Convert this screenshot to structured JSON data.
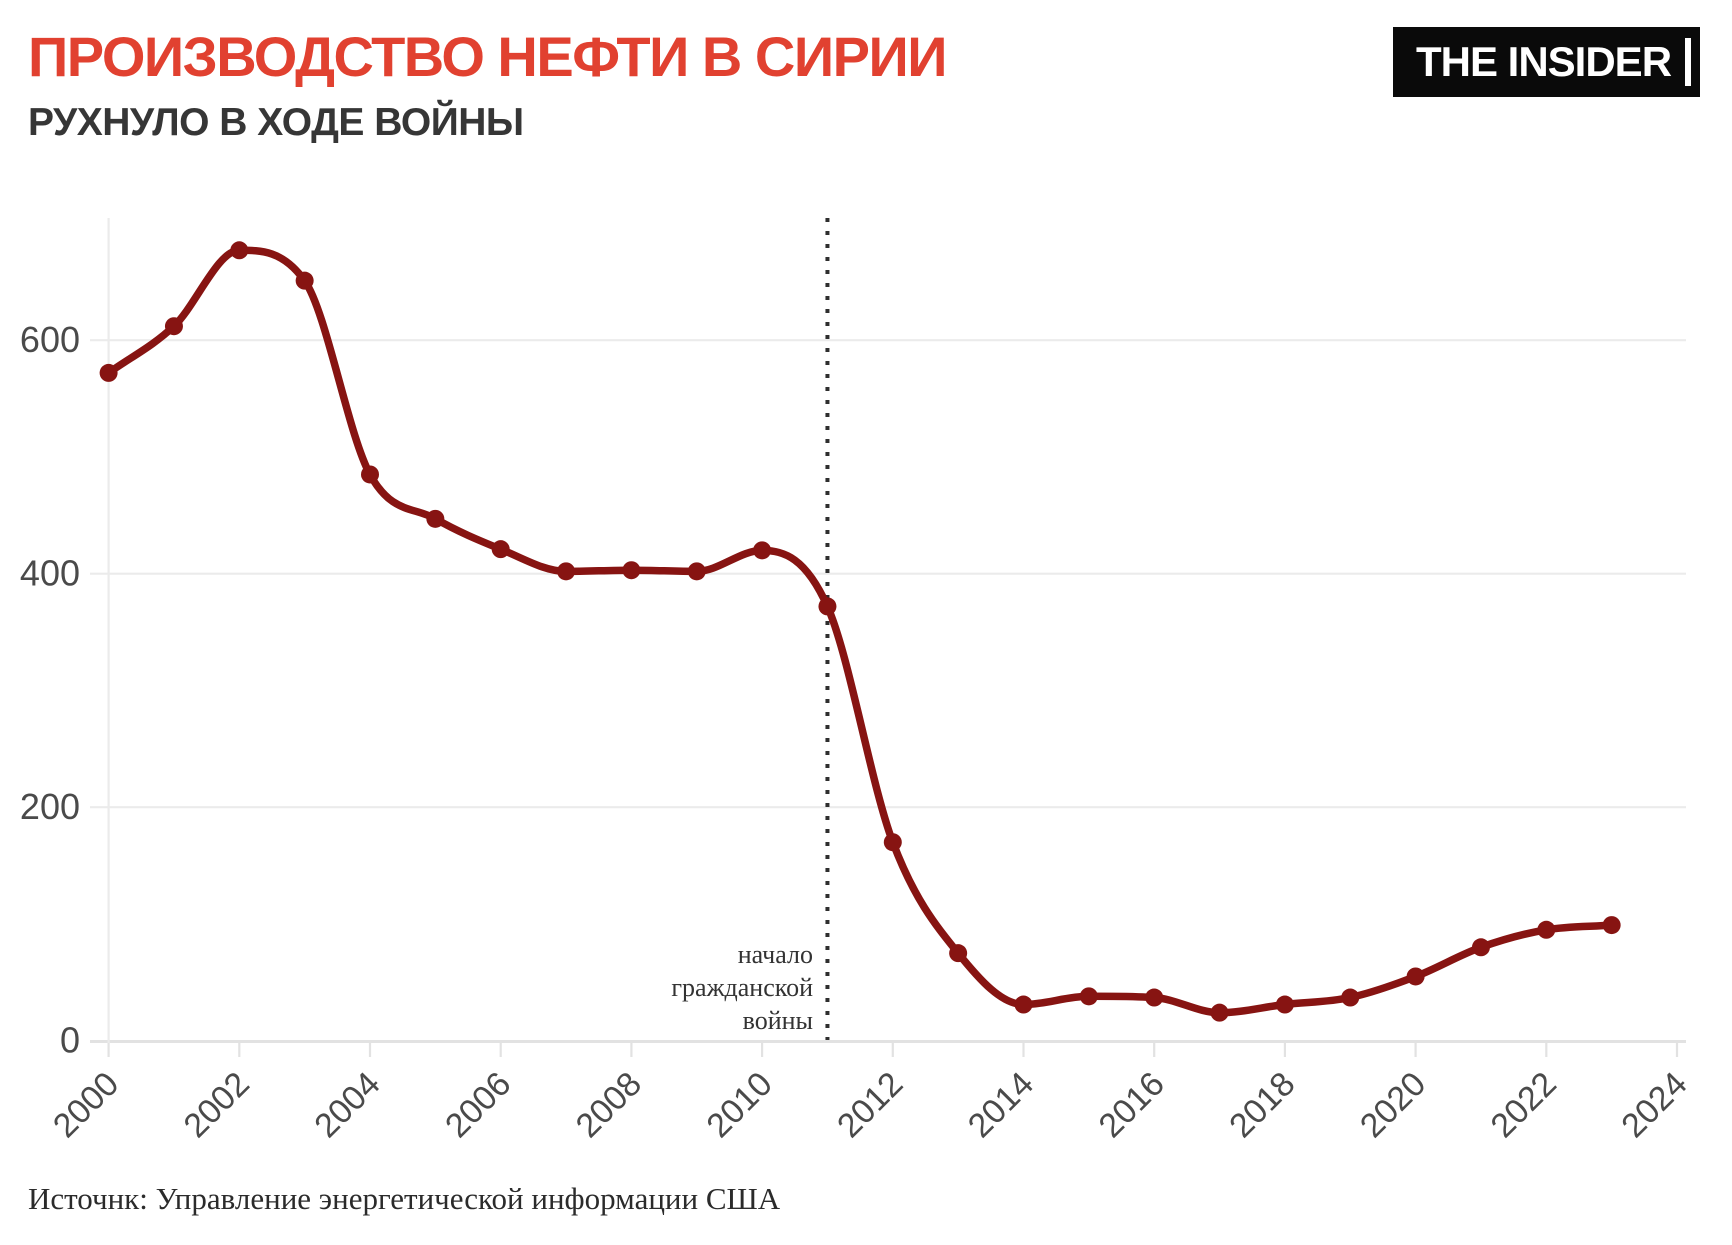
{
  "page": {
    "title": "ПРОИЗВОДСТВО НЕФТИ В СИРИИ",
    "subtitle": "РУХНУЛО В ХОДЕ ВОЙНЫ",
    "logo_text": "THE INSIDER",
    "source": "Источнк: Управление энергетической информации США"
  },
  "colors": {
    "title": "#e14130",
    "subtitle": "#363636",
    "line": "#871412",
    "grid": "#ebebeb",
    "axis": "#e2e2e2",
    "tick_label": "#4a4a4a",
    "divider": "#2e2e2e",
    "logo_bg": "#0a0a0a",
    "logo_fg": "#ffffff"
  },
  "chart_data": {
    "type": "line",
    "title": "ПРОИЗВОДСТВО НЕФТИ В СИРИИ",
    "subtitle": "РУХНУЛО В ХОДЕ ВОЙНЫ",
    "x": [
      2000,
      2001,
      2002,
      2003,
      2004,
      2005,
      2006,
      2007,
      2008,
      2009,
      2010,
      2011,
      2012,
      2013,
      2014,
      2015,
      2016,
      2017,
      2018,
      2019,
      2020,
      2021,
      2022,
      2023
    ],
    "values": [
      572,
      612,
      677,
      651,
      485,
      447,
      421,
      402,
      403,
      402,
      420,
      372,
      170,
      75,
      31,
      38,
      37,
      24,
      31,
      37,
      55,
      80,
      95,
      99
    ],
    "x_ticks": [
      2000,
      2002,
      2004,
      2006,
      2008,
      2010,
      2012,
      2014,
      2016,
      2018,
      2020,
      2022,
      2024
    ],
    "y_ticks": [
      0,
      200,
      400,
      600
    ],
    "xlim": [
      2000,
      2024
    ],
    "ylim": [
      0,
      700
    ],
    "grid": "horizontal",
    "legend": "none",
    "annotation": {
      "x": 2011,
      "lines": [
        "начало",
        "гражданской",
        "войны"
      ]
    }
  }
}
